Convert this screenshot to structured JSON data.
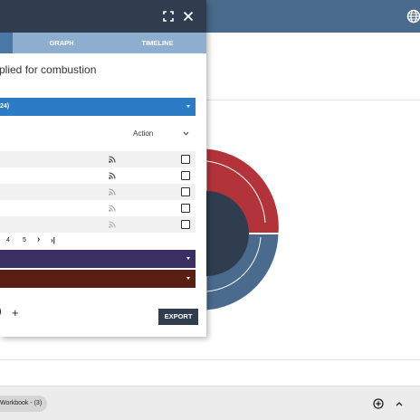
{
  "colors": {
    "topbar": "#4a6b8d",
    "panel_header": "#2f3d4e",
    "tab_strip": "#8eaecf",
    "tab_active": "#4b77a6",
    "select_blue": "#2b7bc6",
    "select_purple": "#3a2f63",
    "select_maroon": "#5a1e14",
    "donut_red": "#b2343a",
    "donut_blue": "#4a6b8d",
    "donut_center": "#2f3d4e"
  },
  "panel": {
    "tabs": {
      "graph": "GRAPH",
      "timeline": "TIMELINE"
    },
    "title": "plied for combustion",
    "select_blue_label": "24)",
    "action_label": "Action",
    "rows": [
      {
        "shaded": true,
        "rss_active": true
      },
      {
        "shaded": false,
        "rss_active": true
      },
      {
        "shaded": true,
        "rss_active": false
      },
      {
        "shaded": false,
        "rss_active": false
      },
      {
        "shaded": true,
        "rss_active": false
      }
    ],
    "pager": {
      "page4": "4",
      "page5": "5",
      "next": "›",
      "last": "›|"
    },
    "paren": ")",
    "add_symbol": "+",
    "export_label": "EXPORT"
  },
  "bottom": {
    "workbook_label": "Workbook - (3)"
  },
  "icons": {
    "expand": "expand-icon",
    "close": "close-icon",
    "globe": "globe-icon",
    "rss": "rss-icon",
    "plus_circle": "add-circle-icon",
    "chevron_up": "chevron-up-icon",
    "chevron_down": "chevron-down-icon"
  }
}
